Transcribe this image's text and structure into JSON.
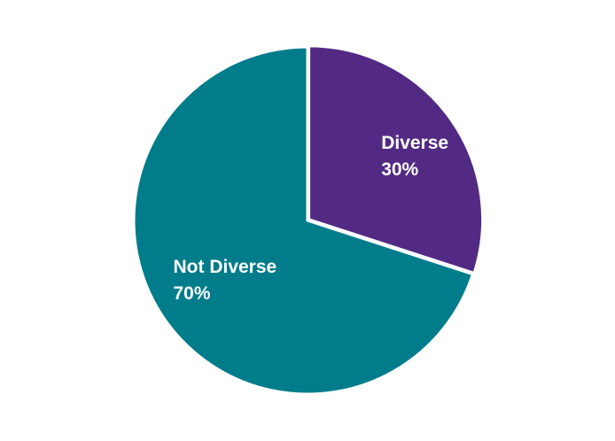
{
  "chart_data": {
    "type": "pie",
    "categories": [
      "Diverse",
      "Not Diverse"
    ],
    "values": [
      30,
      70
    ],
    "value_labels": [
      "30%",
      "70%"
    ],
    "colors": [
      "#522a84",
      "#007c8b"
    ],
    "slice_border_color": "#ffffff",
    "start_angle": "12 o'clock",
    "direction": "clockwise",
    "legend": "none",
    "title": ""
  }
}
